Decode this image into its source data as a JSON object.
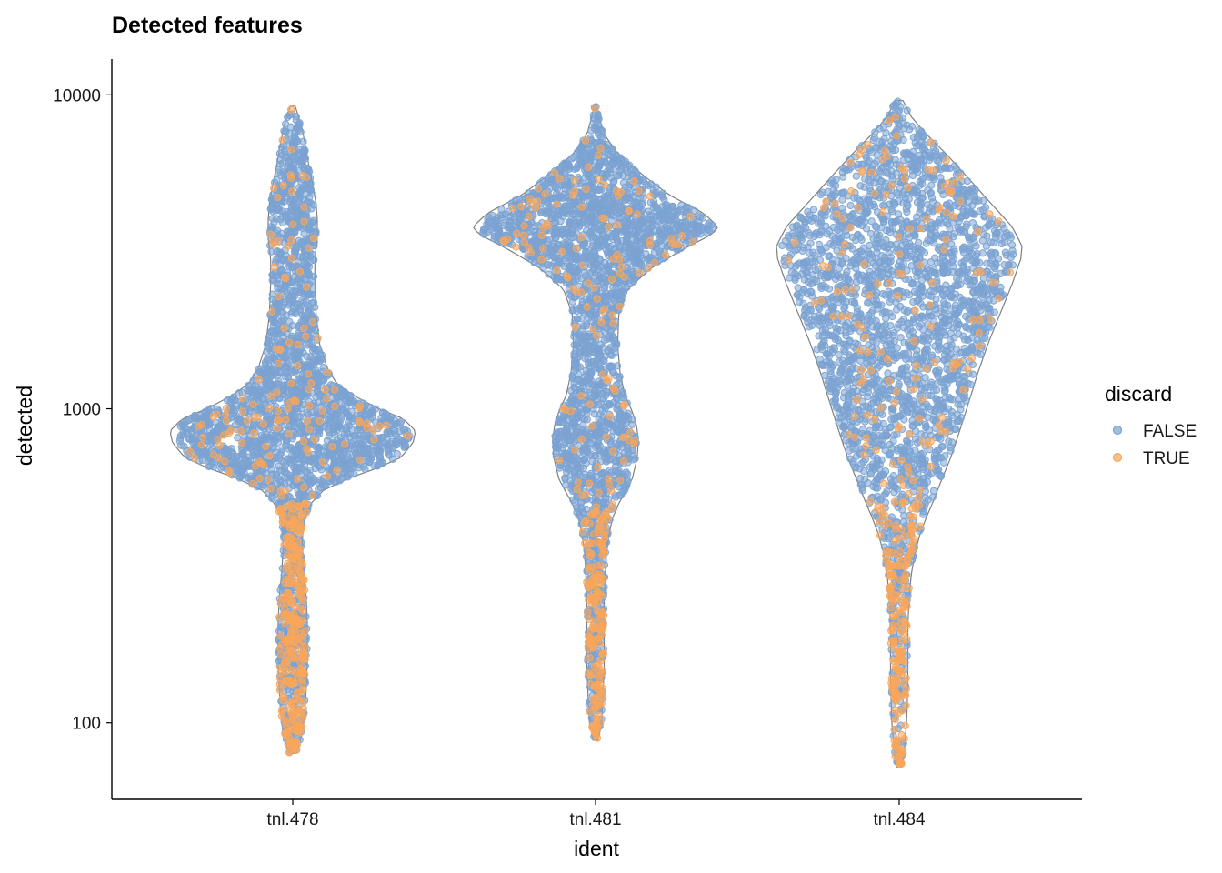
{
  "chart_data": {
    "type": "violin",
    "title": "Detected features",
    "xlabel": "ident",
    "ylabel": "detected",
    "y_scale": "log10",
    "ylim": [
      57,
      13000
    ],
    "y_ticks": [
      {
        "value": 100,
        "label": "100"
      },
      {
        "value": 1000,
        "label": "1000"
      },
      {
        "value": 10000,
        "label": "10000"
      }
    ],
    "categories": [
      "tnl.478",
      "tnl.481",
      "tnl.484"
    ],
    "grid": false,
    "legend": {
      "title": "discard",
      "position": "right",
      "entries": [
        {
          "label": "FALSE",
          "color": "#7BA3D2"
        },
        {
          "label": "TRUE",
          "color": "#F9A65A"
        }
      ]
    },
    "series": [
      {
        "category": "tnl.478",
        "min": 80,
        "max": 9200,
        "outline_color": "#7f7f7f",
        "density_profile": [
          [
            80,
            0.03
          ],
          [
            90,
            0.07
          ],
          [
            100,
            0.09
          ],
          [
            110,
            0.1
          ],
          [
            130,
            0.11
          ],
          [
            160,
            0.12
          ],
          [
            200,
            0.12
          ],
          [
            250,
            0.11
          ],
          [
            300,
            0.09
          ],
          [
            350,
            0.08
          ],
          [
            400,
            0.08
          ],
          [
            450,
            0.1
          ],
          [
            500,
            0.15
          ],
          [
            550,
            0.25
          ],
          [
            600,
            0.45
          ],
          [
            650,
            0.7
          ],
          [
            700,
            0.88
          ],
          [
            780,
            0.98
          ],
          [
            850,
            1.0
          ],
          [
            930,
            0.9
          ],
          [
            1000,
            0.7
          ],
          [
            1100,
            0.5
          ],
          [
            1200,
            0.36
          ],
          [
            1350,
            0.28
          ],
          [
            1600,
            0.22
          ],
          [
            2000,
            0.19
          ],
          [
            2500,
            0.18
          ],
          [
            3000,
            0.18
          ],
          [
            3500,
            0.2
          ],
          [
            4000,
            0.2
          ],
          [
            4500,
            0.19
          ],
          [
            5000,
            0.17
          ],
          [
            6000,
            0.13
          ],
          [
            7000,
            0.1
          ],
          [
            8000,
            0.07
          ],
          [
            9200,
            0.02
          ]
        ],
        "points": [
          {
            "label": "FALSE",
            "n": 2600
          },
          {
            "label": "TRUE",
            "n": 420
          }
        ]
      },
      {
        "category": "tnl.481",
        "min": 88,
        "max": 9300,
        "outline_color": "#7f7f7f",
        "density_profile": [
          [
            88,
            0.02
          ],
          [
            100,
            0.05
          ],
          [
            120,
            0.06
          ],
          [
            150,
            0.07
          ],
          [
            200,
            0.07
          ],
          [
            250,
            0.07
          ],
          [
            300,
            0.08
          ],
          [
            350,
            0.09
          ],
          [
            400,
            0.11
          ],
          [
            450,
            0.14
          ],
          [
            500,
            0.19
          ],
          [
            550,
            0.25
          ],
          [
            600,
            0.3
          ],
          [
            700,
            0.34
          ],
          [
            800,
            0.35
          ],
          [
            900,
            0.33
          ],
          [
            1000,
            0.29
          ],
          [
            1100,
            0.24
          ],
          [
            1300,
            0.2
          ],
          [
            1600,
            0.18
          ],
          [
            2000,
            0.19
          ],
          [
            2400,
            0.26
          ],
          [
            2800,
            0.45
          ],
          [
            3200,
            0.7
          ],
          [
            3600,
            0.95
          ],
          [
            3800,
            1.0
          ],
          [
            4200,
            0.88
          ],
          [
            4800,
            0.6
          ],
          [
            5500,
            0.4
          ],
          [
            6500,
            0.18
          ],
          [
            7500,
            0.07
          ],
          [
            8500,
            0.03
          ],
          [
            9300,
            0.01
          ]
        ],
        "points": [
          {
            "label": "FALSE",
            "n": 2600
          },
          {
            "label": "TRUE",
            "n": 300
          }
        ]
      },
      {
        "category": "tnl.484",
        "min": 72,
        "max": 9600,
        "outline_color": "#7f7f7f",
        "density_profile": [
          [
            72,
            0.02
          ],
          [
            80,
            0.04
          ],
          [
            90,
            0.05
          ],
          [
            100,
            0.06
          ],
          [
            130,
            0.07
          ],
          [
            160,
            0.07
          ],
          [
            200,
            0.07
          ],
          [
            250,
            0.08
          ],
          [
            300,
            0.1
          ],
          [
            350,
            0.13
          ],
          [
            400,
            0.17
          ],
          [
            450,
            0.22
          ],
          [
            500,
            0.27
          ],
          [
            600,
            0.35
          ],
          [
            700,
            0.42
          ],
          [
            800,
            0.47
          ],
          [
            1000,
            0.55
          ],
          [
            1300,
            0.64
          ],
          [
            1600,
            0.72
          ],
          [
            2000,
            0.82
          ],
          [
            2500,
            0.92
          ],
          [
            3000,
            0.99
          ],
          [
            3300,
            1.0
          ],
          [
            3800,
            0.92
          ],
          [
            4500,
            0.75
          ],
          [
            5500,
            0.55
          ],
          [
            6500,
            0.38
          ],
          [
            7500,
            0.22
          ],
          [
            8500,
            0.1
          ],
          [
            9600,
            0.03
          ]
        ],
        "points": [
          {
            "label": "FALSE",
            "n": 2600
          },
          {
            "label": "TRUE",
            "n": 340
          }
        ]
      }
    ]
  }
}
